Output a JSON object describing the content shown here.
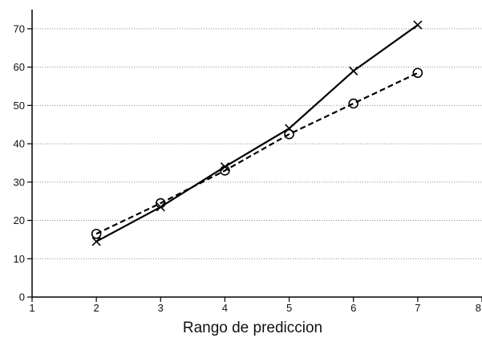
{
  "chart_data": {
    "type": "line",
    "title": "",
    "xlabel": "Rango de prediccion",
    "ylabel": "",
    "x": [
      2,
      3,
      4,
      5,
      6,
      7
    ],
    "xlim": [
      1,
      8
    ],
    "ylim": [
      0,
      75
    ],
    "xticks": [
      "1",
      "2",
      "3",
      "4",
      "5",
      "6",
      "7",
      "8"
    ],
    "xtick_values": [
      1,
      2,
      3,
      4,
      5,
      6,
      7,
      8
    ],
    "yticks": [
      "0",
      "10",
      "20",
      "30",
      "40",
      "50",
      "60",
      "70"
    ],
    "ytick_values": [
      0,
      10,
      20,
      30,
      40,
      50,
      60,
      70
    ],
    "grid": true,
    "legend": "none",
    "series": [
      {
        "values": [
          14.5,
          23.5,
          34,
          44,
          59,
          71
        ],
        "marker": "x",
        "line_style": "solid",
        "color": "#000000"
      },
      {
        "values": [
          16.5,
          24.5,
          33,
          42.5,
          50.5,
          58.5
        ],
        "marker": "o",
        "line_style": "dashed",
        "color": "#000000"
      }
    ]
  }
}
